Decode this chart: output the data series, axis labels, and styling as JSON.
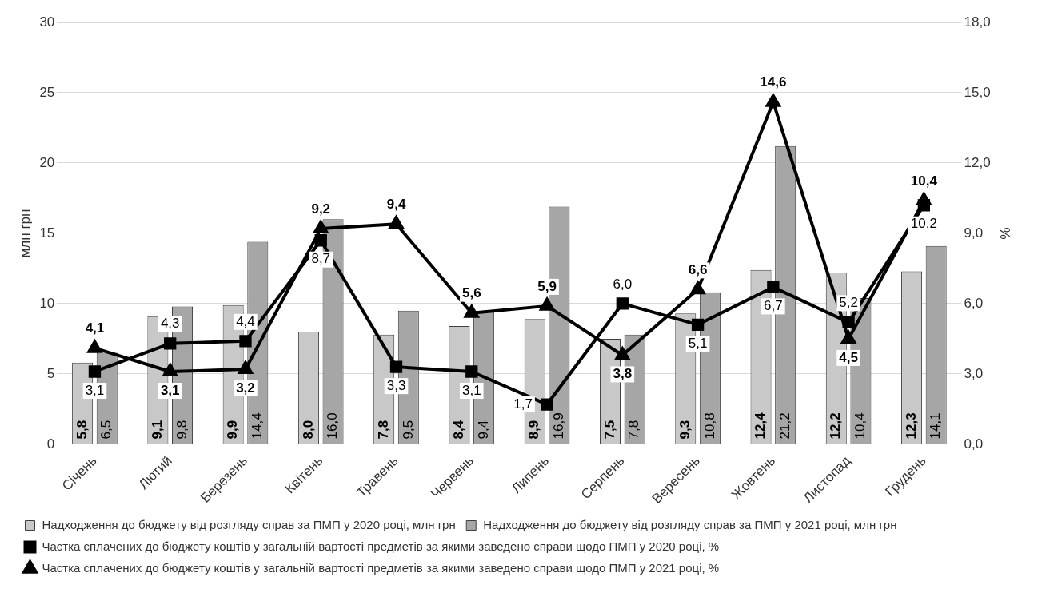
{
  "chart_data": {
    "type": "bar",
    "ylabel": "млн грн",
    "y2label": "%",
    "categories": [
      "Січень",
      "Лютий",
      "Березень",
      "Квітень",
      "Травень",
      "Червень",
      "Липень",
      "Серпень",
      "Вересень",
      "Жовтень",
      "Листопад",
      "Грудень"
    ],
    "series": [
      {
        "name": "Надходження до бюджету від розгляду справ за ПМП у 2020 році, млн грн",
        "color": "#c8c8c8",
        "values": [
          5.8,
          9.1,
          9.9,
          8.0,
          7.8,
          8.4,
          8.9,
          7.5,
          9.3,
          12.4,
          12.2,
          12.3
        ],
        "value_labels": [
          "5,8",
          "9,1",
          "9,9",
          "8,0",
          "7,8",
          "8,4",
          "8,9",
          "7,5",
          "9,3",
          "12,4",
          "12,2",
          "12,3"
        ]
      },
      {
        "name": "Надходження до бюджету від розгляду справ за ПМП у 2021 році, млн грн",
        "color": "#a6a6a6",
        "values": [
          6.5,
          9.8,
          14.4,
          16.0,
          9.5,
          9.4,
          16.9,
          7.8,
          10.8,
          21.2,
          10.4,
          14.1
        ],
        "value_labels": [
          "6,5",
          "9,8",
          "14,4",
          "16,0",
          "9,5",
          "9,4",
          "16,9",
          "7,8",
          "10,8",
          "21,2",
          "10,4",
          "14,1"
        ]
      },
      {
        "name": "Частка сплачених до бюджету коштів у загальній вартості предметів за якими заведено справи щодо ПМП у 2020 році, %",
        "type": "line",
        "axis": "y2",
        "marker": "square",
        "color": "#000000",
        "values": [
          3.1,
          4.3,
          4.4,
          8.7,
          3.3,
          3.1,
          1.7,
          6.0,
          5.1,
          6.7,
          5.2,
          10.2
        ],
        "value_labels": [
          "3,1",
          "4,3",
          "4,4",
          "8,7",
          "3,3",
          "3,1",
          "1,7",
          "6,0",
          "5,1",
          "6,7",
          "5,2",
          "10,2"
        ]
      },
      {
        "name": "Частка сплачених до бюджету коштів у загальній вартості предметів за якими заведено справи щодо ПМП у 2021 році, %",
        "type": "line",
        "axis": "y2",
        "marker": "triangle",
        "color": "#000000",
        "values": [
          4.1,
          3.1,
          3.2,
          9.2,
          9.4,
          5.6,
          5.9,
          3.8,
          6.6,
          14.6,
          4.5,
          10.4
        ],
        "value_labels": [
          "4,1",
          "3,1",
          "3,2",
          "9,2",
          "9,4",
          "5,6",
          "5,9",
          "3,8",
          "6,6",
          "14,6",
          "4,5",
          "10,4"
        ]
      }
    ],
    "ylim": [
      0,
      30
    ],
    "yticks": [
      0,
      5,
      10,
      15,
      20,
      25,
      30
    ],
    "y2lim": [
      0,
      18
    ],
    "y2ticks": [
      {
        "value": 0,
        "label": "0,0"
      },
      {
        "value": 3,
        "label": "3,0"
      },
      {
        "value": 6,
        "label": "6,0"
      },
      {
        "value": 9,
        "label": "9,0"
      },
      {
        "value": 12,
        "label": "12,0"
      },
      {
        "value": 15,
        "label": "15,0"
      },
      {
        "value": 18,
        "label": "18,0"
      }
    ],
    "grid": "y",
    "legend": "bottom"
  }
}
